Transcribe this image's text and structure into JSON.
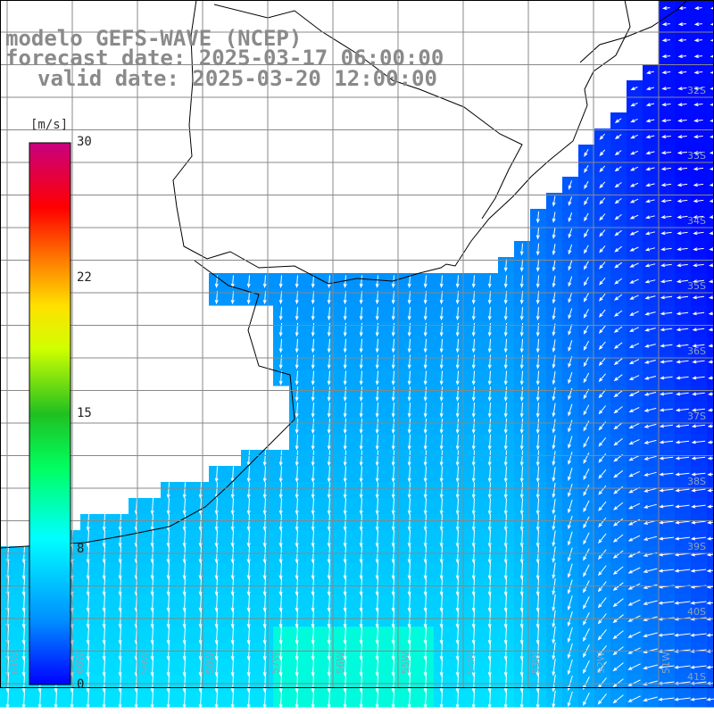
{
  "title": {
    "line1": "modelo GEFS-WAVE (NCEP)",
    "line2": "forecast date: 2025-03-17 06:00:00",
    "line3": "valid date: 2025-03-20 12:00:00"
  },
  "colorbar": {
    "unit": "[m/s]",
    "ticks": [
      "30",
      "22",
      "15",
      "8",
      "0"
    ],
    "min": 0,
    "max": 30,
    "colors": [
      "#0000ff",
      "#00a0ff",
      "#00ffff",
      "#00ff80",
      "#00c000",
      "#80ff00",
      "#ffff00",
      "#ffa000",
      "#ff4000",
      "#ff0000",
      "#d00080"
    ]
  },
  "map": {
    "lat_labels": [
      "32S",
      "33S",
      "34S",
      "35S",
      "36S",
      "37S",
      "38S",
      "39S",
      "40S",
      "41S"
    ],
    "lon_labels": [
      "61W",
      "60W",
      "59W",
      "58W",
      "57W",
      "56W",
      "55W",
      "54W",
      "53W",
      "52W",
      "51W"
    ],
    "wind_direction": "northeast",
    "land_color": "#ffffff",
    "grid_color": "#888888"
  }
}
